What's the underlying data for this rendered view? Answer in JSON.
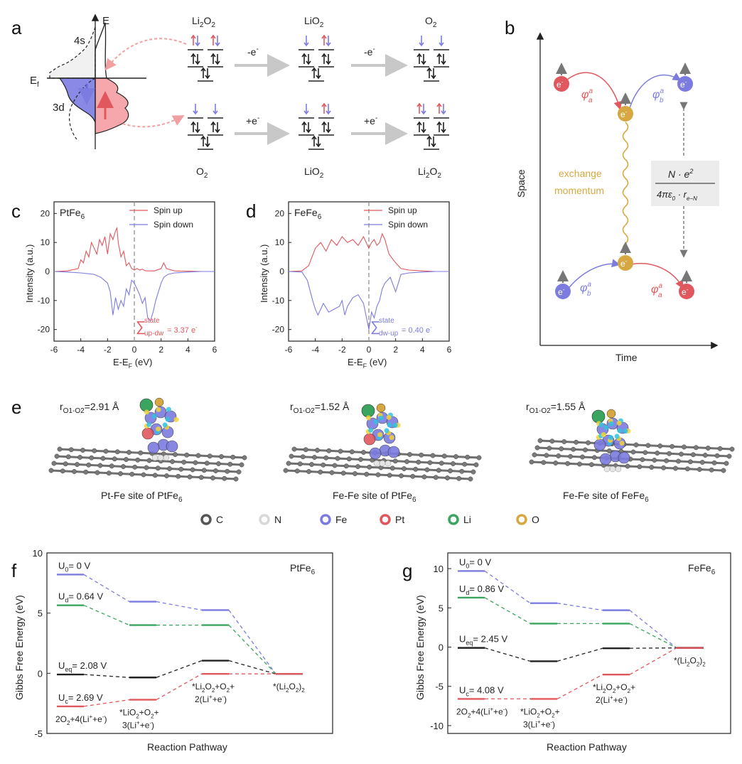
{
  "colors": {
    "red": "#e0585e",
    "blue": "#7c7ce0",
    "green": "#3aa55f",
    "gold": "#d7a841",
    "black": "#222222",
    "arrowGray": "#c8c8c8",
    "dashGray": "#777777"
  },
  "panel_a": {
    "label": "a",
    "dos": {
      "E": "E",
      "Ef": "E",
      "Ef_sub": "f",
      "s4": "4s",
      "d3": "3d"
    },
    "top": {
      "title1": "Li",
      "title1_sub": "2",
      "title1b": "O",
      "title1b_sub": "2",
      "title2": "LiO",
      "title2_sub": "2",
      "title3": "O",
      "title3_sub": "2",
      "step1": "-e",
      "step2": "-e",
      "sup": "-"
    },
    "bottom": {
      "title1": "O",
      "title1_sub": "2",
      "title2": "LiO",
      "title2_sub": "2",
      "title3": "Li",
      "title3_sub": "2",
      "title3b": "O",
      "title3b_sub": "2",
      "step1": "+e",
      "step2": "+e",
      "sup": "-"
    }
  },
  "panel_b": {
    "label": "b",
    "ylabel": "Space",
    "xlabel": "Time",
    "exchange1": "exchange",
    "exchange2": "momentum",
    "electron": "e",
    "electron_sup": "-",
    "phi_a": "φ",
    "phi_b": "φ",
    "sup_a": "a",
    "sub_a": "a",
    "sub_b": "b",
    "formula_num": "N · e",
    "formula_num_sup": "2",
    "formula_den": "4πε",
    "formula_den_sub": "0",
    "formula_den2": " · r",
    "formula_den_sub2": "e−N"
  },
  "panel_e": {
    "label": "e",
    "r1": "=2.91 Å",
    "r2": "=1.52 Å",
    "r3": "=1.55 Å",
    "r_main": "r",
    "r_sub": "O1-O2",
    "cap1": "Pt-Fe site of PtFe",
    "cap2": "Fe-Fe site of PtFe",
    "cap3": "Fe-Fe site of FeFe",
    "cap_sub": "6",
    "legend": [
      {
        "label": "C",
        "color": "#555555"
      },
      {
        "label": "N",
        "color": "#d8d8d8"
      },
      {
        "label": "Fe",
        "color": "#7c7ce0"
      },
      {
        "label": "Pt",
        "color": "#e0585e"
      },
      {
        "label": "Li",
        "color": "#3aa55f"
      },
      {
        "label": "O",
        "color": "#d7a841"
      }
    ]
  },
  "chart_data": [
    {
      "panel": "c",
      "type": "line",
      "title": "PtFe",
      "title_sub": "6",
      "xlabel": "E-E",
      "xlabel_sub": "F",
      "xlabel_unit": " (eV)",
      "ylabel": "Intensity (a.u.)",
      "xlim": [
        -6,
        6
      ],
      "ylim": [
        -24,
        24
      ],
      "xticks": [
        -6,
        -4,
        -2,
        0,
        2,
        4,
        6
      ],
      "yticks": [
        20,
        10,
        0,
        -10,
        -20
      ],
      "legend": [
        "Spin up",
        "Spin down"
      ],
      "annotation": {
        "sigma": "∑",
        "sup": "state",
        "sub": "up-dw",
        "value": "= 3.37 e",
        "value_sup": "-"
      },
      "series": [
        {
          "name": "Spin up",
          "color": "#e0585e",
          "x": [
            -6,
            -5,
            -4.2,
            -4,
            -3.8,
            -3.6,
            -3.4,
            -3.2,
            -3,
            -2.8,
            -2.6,
            -2.4,
            -2.2,
            -2,
            -1.8,
            -1.6,
            -1.4,
            -1.3,
            -1.2,
            -1,
            -0.8,
            -0.6,
            -0.4,
            -0.2,
            0,
            0.2,
            0.4,
            0.6,
            0.8,
            1,
            1.5,
            2,
            2.2,
            2.4,
            3,
            4,
            5,
            6
          ],
          "y": [
            0,
            0.2,
            1,
            4,
            3,
            7,
            5,
            10,
            8,
            6,
            11,
            9,
            12,
            6,
            13,
            11,
            14,
            15,
            10,
            5,
            7,
            2,
            3,
            1,
            0.5,
            1,
            0.5,
            0.8,
            0.3,
            0.2,
            0.2,
            1,
            3,
            1,
            0.2,
            0.1,
            0,
            0
          ]
        },
        {
          "name": "Spin down",
          "color": "#7c7ce0",
          "x": [
            -6,
            -5,
            -4,
            -3,
            -2.5,
            -2,
            -1.8,
            -1.6,
            -1.4,
            -1.2,
            -1,
            -0.8,
            -0.6,
            -0.4,
            -0.2,
            0,
            0.2,
            0.4,
            0.6,
            0.8,
            1,
            1.2,
            1.4,
            1.6,
            1.8,
            2,
            2.2,
            2.5,
            3,
            4,
            5,
            6
          ],
          "y": [
            0,
            -0.2,
            -0.5,
            -1,
            -2,
            -4,
            -7,
            -15,
            -9,
            -13,
            -10,
            -12,
            -6,
            -8,
            -3,
            -4,
            -6,
            -8,
            -11,
            -9,
            -16,
            -17,
            -14,
            -10,
            -7,
            -4,
            -2,
            -1,
            -0.5,
            -0.2,
            0,
            0
          ]
        }
      ]
    },
    {
      "panel": "d",
      "type": "line",
      "title": "FeFe",
      "title_sub": "6",
      "xlabel": "E-E",
      "xlabel_sub": "F",
      "xlabel_unit": " (eV)",
      "ylabel": "Intensity (a.u.)",
      "xlim": [
        -6,
        6
      ],
      "ylim": [
        -24,
        24
      ],
      "xticks": [
        -6,
        -4,
        -2,
        0,
        2,
        4,
        6
      ],
      "yticks": [
        20,
        10,
        0,
        -10,
        -20
      ],
      "legend": [
        "Spin up",
        "Spin down"
      ],
      "annotation": {
        "sigma": "∑",
        "sup": "state",
        "sub": "dw-up",
        "value": "= 0.40 e",
        "value_sup": "-"
      },
      "series": [
        {
          "name": "Spin up",
          "color": "#e0585e",
          "x": [
            -6,
            -5,
            -4.5,
            -4,
            -3.6,
            -3.2,
            -2.8,
            -2.4,
            -2,
            -1.6,
            -1.2,
            -0.8,
            -0.4,
            0,
            0.2,
            0.4,
            0.6,
            0.8,
            1,
            1.2,
            1.5,
            2,
            2.4,
            3,
            4,
            5,
            6
          ],
          "y": [
            0,
            0.2,
            2,
            8,
            10,
            7,
            11,
            9,
            12,
            10,
            11,
            9,
            12,
            8,
            10,
            11,
            9,
            10,
            13,
            11,
            6,
            3,
            1,
            0.5,
            0.2,
            0,
            0
          ]
        },
        {
          "name": "Spin down",
          "color": "#7c7ce0",
          "x": [
            -6,
            -5,
            -4.6,
            -4.2,
            -4,
            -3.8,
            -3.4,
            -3,
            -2.6,
            -2.2,
            -2,
            -1.8,
            -1.6,
            -1.2,
            -0.8,
            -0.4,
            0,
            0.2,
            0.4,
            0.6,
            0.8,
            1,
            1.2,
            1.6,
            2,
            2.4,
            3,
            4,
            5,
            6
          ],
          "y": [
            0,
            -0.2,
            -3,
            -10,
            -13,
            -15,
            -11,
            -14,
            -13,
            -12,
            -10,
            -15,
            -12,
            -9,
            -8,
            -11,
            -20,
            -14,
            -16,
            -12,
            -10,
            -6,
            -4,
            -2,
            -7,
            -1,
            -0.5,
            -0.2,
            0,
            0
          ]
        }
      ]
    },
    {
      "panel": "f",
      "type": "energy-diagram",
      "title": "PtFe",
      "title_sub": "6",
      "xlabel": "Reaction Pathway",
      "ylabel": "Gibbs Free Energy (eV)",
      "ylim": [
        -5,
        10
      ],
      "yticks": [
        10,
        5,
        0,
        -5
      ],
      "series": [
        {
          "name": "U0",
          "label_main": "U",
          "label_sub": "0",
          "label_rest": "= 0 V",
          "color": "#7c7ce0",
          "values": [
            8.2,
            5.95,
            5.25,
            -0.05
          ]
        },
        {
          "name": "Ud",
          "label_main": "U",
          "label_sub": "d",
          "label_rest": "= 0.64 V",
          "color": "#3aa55f",
          "values": [
            5.65,
            4.0,
            4.0,
            -0.05
          ]
        },
        {
          "name": "Ueq",
          "label_main": "U",
          "label_sub": "eq",
          "label_rest": "= 2.08 V",
          "color": "#222222",
          "values": [
            -0.1,
            -0.35,
            1.05,
            -0.05
          ]
        },
        {
          "name": "Uc",
          "label_main": "U",
          "label_sub": "c",
          "label_rest": "= 2.69 V",
          "color": "#e0585e",
          "values": [
            -2.75,
            -2.2,
            -0.05,
            -0.05
          ]
        }
      ],
      "stage_labels": [
        "2O",
        "*LiO",
        "*Li",
        "*(Li"
      ],
      "stage_text": {
        "s1": "2O",
        "s1_sub": "2",
        "s1b": "+4(Li",
        "s1_sup": "+",
        "s1c": "+e",
        "s1_sup2": "-",
        "s1d": ")",
        "s2a": "*LiO",
        "s2_sub": "2",
        "s2b": "+O",
        "s2_sub2": "2",
        "s2c": "+",
        "s2d": "3(Li",
        "s2_sup": "+",
        "s2e": "+e",
        "s2_sup2": "-",
        "s2f": ")",
        "s3a": "*Li",
        "s3_sub": "2",
        "s3b": "O",
        "s3_sub2": "2",
        "s3c": "+O",
        "s3_sub3": "2",
        "s3d": "+",
        "s3e": "2(Li",
        "s3_sup": "+",
        "s3f": "+e",
        "s3_sup2": "-",
        "s3g": ")",
        "s4a": "*(Li",
        "s4_sub": "2",
        "s4b": "O",
        "s4_sub2": "2",
        "s4c": ")",
        "s4_sub3": "2"
      }
    },
    {
      "panel": "g",
      "type": "energy-diagram",
      "title": "FeFe",
      "title_sub": "6",
      "xlabel": "Reaction Pathway",
      "ylabel": "Gibbs Free Energy (eV)",
      "ylim": [
        -11,
        12
      ],
      "yticks": [
        10,
        5,
        0,
        -5,
        -10
      ],
      "series": [
        {
          "name": "U0",
          "label_main": "U",
          "label_sub": "0",
          "label_rest": "= 0 V",
          "color": "#7c7ce0",
          "values": [
            9.7,
            5.6,
            4.7,
            -0.1
          ]
        },
        {
          "name": "Ud",
          "label_main": "U",
          "label_sub": "d",
          "label_rest": "= 0.86 V",
          "color": "#3aa55f",
          "values": [
            6.3,
            3.0,
            3.0,
            -0.1
          ]
        },
        {
          "name": "Ueq",
          "label_main": "U",
          "label_sub": "eq",
          "label_rest": "= 2.45 V",
          "color": "#222222",
          "values": [
            -0.1,
            -1.8,
            -0.15,
            -0.1
          ]
        },
        {
          "name": "Uc",
          "label_main": "U",
          "label_sub": "c",
          "label_rest": "= 4.08 V",
          "color": "#e0585e",
          "values": [
            -6.6,
            -6.6,
            -3.5,
            -0.1
          ]
        }
      ],
      "stage_labels": [
        "2O",
        "*LiO",
        "*Li",
        "*(Li"
      ],
      "stage_text": {
        "s1": "2O",
        "s1_sub": "2",
        "s1b": "+4(Li",
        "s1_sup": "+",
        "s1c": "+e",
        "s1_sup2": "-",
        "s1d": ")",
        "s2a": "*LiO",
        "s2_sub": "2",
        "s2b": "+O",
        "s2_sub2": "2",
        "s2c": "+",
        "s2d": "3(Li",
        "s2_sup": "+",
        "s2e": "+e",
        "s2_sup2": "-",
        "s2f": ")",
        "s3a": "*Li",
        "s3_sub": "2",
        "s3b": "O",
        "s3_sub2": "2",
        "s3c": "+O",
        "s3_sub3": "2",
        "s3d": "+",
        "s3e": "2(Li",
        "s3_sup": "+",
        "s3f": "+e",
        "s3_sup2": "-",
        "s3g": ")",
        "s4a": "*(Li",
        "s4_sub": "2",
        "s4b": "O",
        "s4_sub2": "2",
        "s4c": ")",
        "s4_sub3": "2"
      }
    }
  ]
}
